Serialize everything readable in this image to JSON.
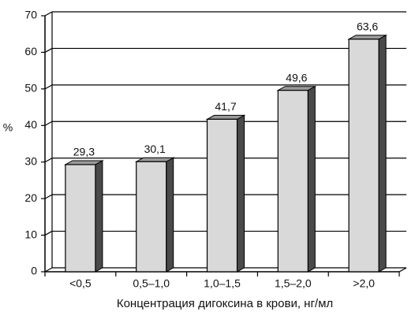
{
  "chart_data": {
    "type": "bar3d",
    "categories": [
      "<0,5",
      "0,5–1,0",
      "1,0–1,5",
      "1,5–2,0",
      ">2,0"
    ],
    "values": [
      29.3,
      30.1,
      41.7,
      49.6,
      63.6
    ],
    "value_labels": [
      "29,3",
      "30,1",
      "41,7",
      "49,6",
      "63,6"
    ],
    "color": "#d9d9d9",
    "y_label": "%",
    "x_label": "Концентрация дигоксина в крови, нг/мл",
    "ylim": [
      0,
      70
    ],
    "yticks": [
      0,
      10,
      20,
      30,
      40,
      50,
      60,
      70
    ],
    "grid": true
  }
}
